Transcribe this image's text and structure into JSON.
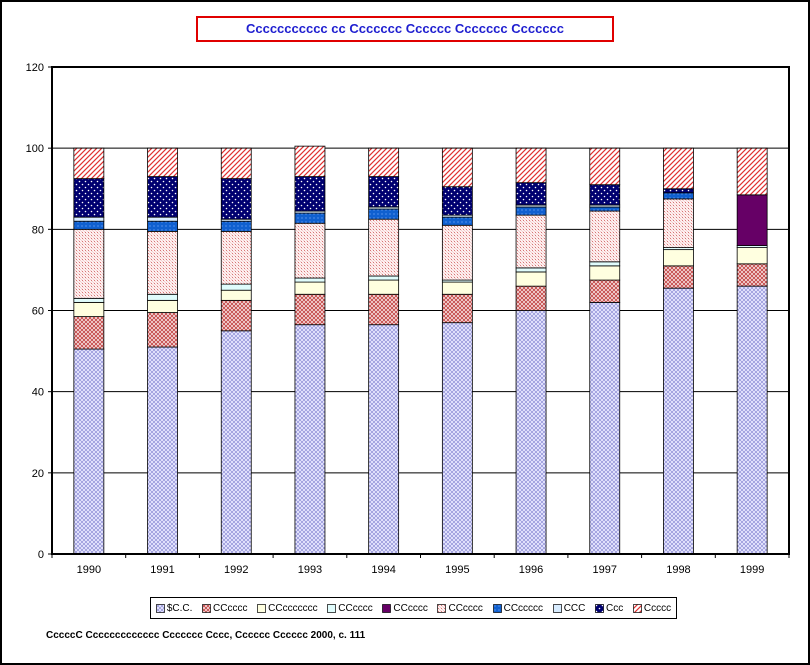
{
  "chart_data": {
    "type": "bar",
    "stacked": true,
    "title": "Ccccccccccc cc Ccccccc Cccccc Ccccccc Ccccccc",
    "xlabel": "",
    "ylabel": "",
    "ylim": [
      0,
      120
    ],
    "yticks": [
      0,
      20,
      40,
      60,
      80,
      100,
      120
    ],
    "grid": true,
    "legend_position": "bottom",
    "categories": [
      "1990",
      "1991",
      "1992",
      "1993",
      "1994",
      "1995",
      "1996",
      "1997",
      "1998",
      "1999"
    ],
    "series": [
      {
        "name": "$C.C.",
        "color": "#c8c8f0",
        "pattern": "grid-lavender",
        "values": [
          50.5,
          51,
          55,
          56.5,
          56.5,
          57,
          60,
          62,
          65.5,
          66
        ]
      },
      {
        "name": "CCcccc",
        "color": "#d08080",
        "pattern": "cross-pink",
        "values": [
          8,
          8.5,
          7.5,
          7.5,
          7.5,
          7,
          6,
          5.5,
          5.5,
          5.5
        ]
      },
      {
        "name": "CCccccccc",
        "color": "#ffffe0",
        "pattern": "plain-cream",
        "values": [
          3.5,
          3,
          2.5,
          3,
          3.5,
          3,
          3.5,
          3.5,
          4,
          4
        ]
      },
      {
        "name": "CCcccc",
        "color": "#d8f8f8",
        "pattern": "plain-cyan",
        "values": [
          1,
          1.5,
          1.5,
          1,
          1,
          0.5,
          1,
          1,
          0.5,
          0.5
        ]
      },
      {
        "name": "CCcccc",
        "color": "#660066",
        "pattern": "solid-purple",
        "values": [
          0,
          0,
          0,
          0,
          0,
          0,
          0,
          0,
          0,
          12.5
        ]
      },
      {
        "name": "CCcccc",
        "color": "#f0c8c8",
        "pattern": "hatch-pink",
        "values": [
          17,
          15.5,
          13,
          13.5,
          14,
          13.5,
          13,
          12.5,
          12,
          0
        ]
      },
      {
        "name": "CCccccc",
        "color": "#1060d0",
        "pattern": "dots-blue",
        "values": [
          2,
          2.5,
          2.5,
          2.5,
          2.5,
          2,
          2,
          1,
          1.5,
          0
        ]
      },
      {
        "name": "CCC",
        "color": "#c8e0f8",
        "pattern": "plain-lightblue",
        "values": [
          1,
          1,
          0.5,
          0.5,
          0.5,
          0.5,
          0.5,
          0.5,
          0,
          0
        ]
      },
      {
        "name": "Ccc",
        "color": "#000080",
        "pattern": "stars-navy",
        "values": [
          9.5,
          10,
          10,
          8.5,
          7.5,
          7,
          5.5,
          5,
          1,
          0
        ]
      },
      {
        "name": "Ccccc",
        "color": "#e04040",
        "pattern": "diag-red",
        "values": [
          7.5,
          7,
          7.5,
          7.5,
          7,
          9.5,
          8.5,
          9,
          10,
          11.5
        ]
      }
    ]
  },
  "source_note": "CccccC  Ccccccccccccc Ccccccc Cccc, Cccccc Cccccc 2000, c. 111"
}
